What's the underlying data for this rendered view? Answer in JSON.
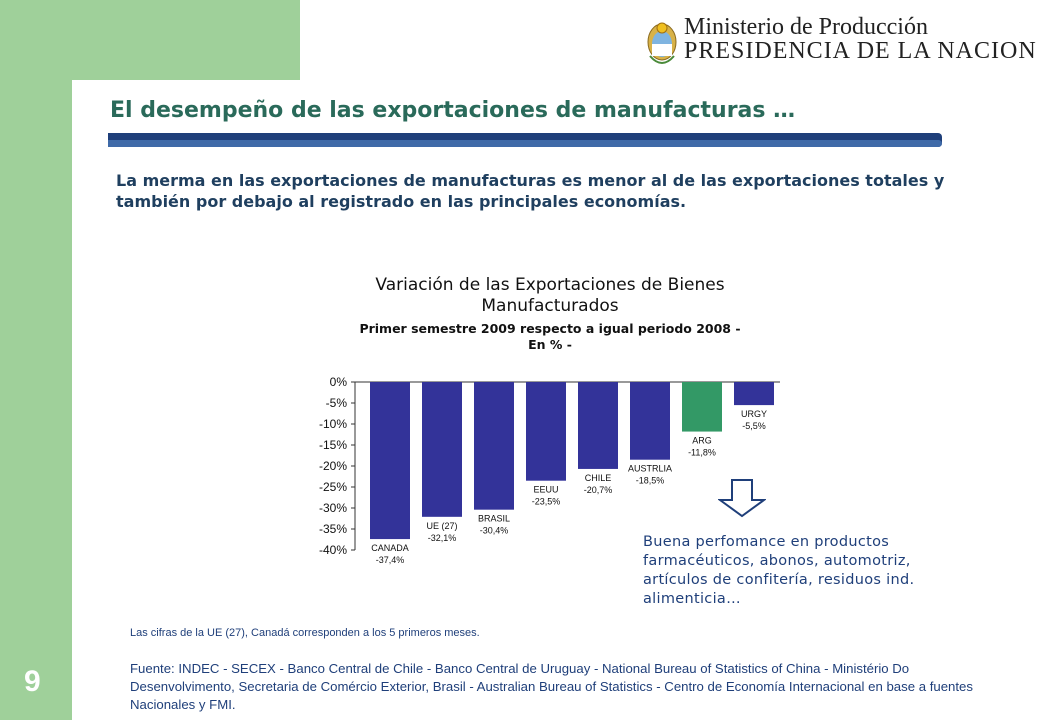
{
  "header": {
    "ministry": "Ministerio de Producción",
    "presidency": "PRESIDENCIA DE LA NACION",
    "page_number": "9"
  },
  "slide": {
    "title": "El desempeño de las exportaciones de manufacturas …",
    "subtitle": "La merma en las exportaciones de manufacturas es menor al de las exportaciones totales y también por debajo al registrado en las principales economías.",
    "callout": "Buena perfomance en productos farmacéuticos, abonos, automotriz, artículos de confitería, residuos ind. alimenticia…",
    "note": "Las cifras de la UE (27), Canadá corresponden a los 5 primeros meses.",
    "source": "Fuente: INDEC - SECEX - Banco Central de Chile - Banco Central de Uruguay - National Bureau of Statistics of China - Ministério Do Desenvolvimento, Secretaria de Comércio Exterior, Brasil - Australian Bureau of Statistics - Centro de Economía Internacional en base a fuentes Nacionales y FMI."
  },
  "chart_data": {
    "type": "bar",
    "title": "Variación de las Exportaciones de Bienes Manufacturados",
    "subtitle_line1": "Primer semestre 2009 respecto a igual periodo 2008 -",
    "subtitle_line2": "En % -",
    "categories": [
      "CANADA",
      "UE (27)",
      "BRASIL",
      "EEUU",
      "CHILE",
      "AUSTRLIA",
      "ARG",
      "URGY"
    ],
    "values": [
      -37.4,
      -32.1,
      -30.4,
      -23.5,
      -20.7,
      -18.5,
      -11.8,
      -5.5
    ],
    "value_labels": [
      "-37,4%",
      "-32,1%",
      "-30,4%",
      "-23,5%",
      "-20,7%",
      "-18,5%",
      "-11,8%",
      "-5,5%"
    ],
    "highlight_category": "ARG",
    "colors": {
      "default": "#333399",
      "highlight": "#339966"
    },
    "ylim": [
      -40,
      0
    ],
    "yticks": [
      0,
      -5,
      -10,
      -15,
      -20,
      -25,
      -30,
      -35,
      -40
    ],
    "ytick_labels": [
      "0%",
      "-5%",
      "-10%",
      "-15%",
      "-20%",
      "-25%",
      "-30%",
      "-35%",
      "-40%"
    ],
    "grid": false,
    "legend": "none"
  }
}
